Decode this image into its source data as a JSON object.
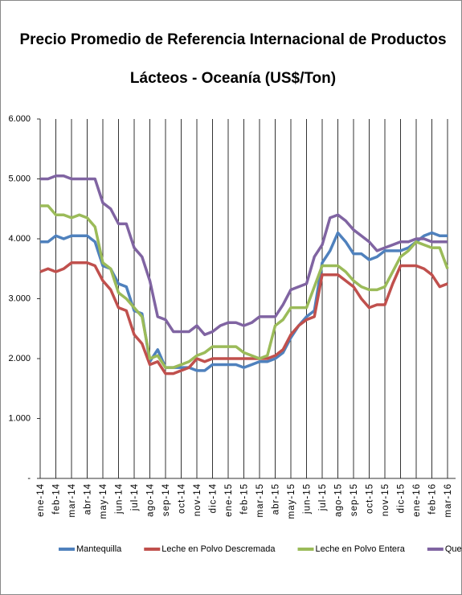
{
  "chart_data": {
    "type": "line",
    "title": [
      "Precio Promedio de Referencia Internacional de Productos",
      "Lácteos - Oceanía (US$/Ton)"
    ],
    "categories": [
      "ene-14",
      null,
      "feb-14",
      null,
      "mar-14",
      null,
      "abr-14",
      null,
      "may-14",
      null,
      "jun-14",
      null,
      "jul-14",
      null,
      "ago-14",
      null,
      "sep-14",
      null,
      "oct-14",
      null,
      "nov-14",
      null,
      "dic-14",
      null,
      "ene-15",
      null,
      "feb-15",
      null,
      "mar-15",
      null,
      "abr-15",
      null,
      "may-15",
      null,
      "jun-15",
      null,
      "jul-15",
      null,
      "ago-15",
      null,
      "sep-15",
      null,
      "oct-15",
      null,
      "nov-15",
      null,
      "dic-15",
      null,
      "ene-16",
      null,
      "feb-16",
      null,
      "mar-16"
    ],
    "series": [
      {
        "name": "Mantequilla",
        "color": "#4f81bd",
        "values": [
          3950,
          3950,
          4050,
          4000,
          4050,
          4050,
          4050,
          3950,
          3550,
          3500,
          3250,
          3200,
          2800,
          2750,
          1950,
          2150,
          1850,
          1850,
          1850,
          1850,
          1800,
          1800,
          1900,
          1900,
          1900,
          1900,
          1850,
          1900,
          1950,
          1950,
          2000,
          2100,
          2350,
          2550,
          2700,
          2800,
          3600,
          3800,
          4100,
          3950,
          3750,
          3750,
          3650,
          3700,
          3800,
          3800,
          3800,
          3850,
          3950,
          4050,
          4100,
          4050,
          4050
        ]
      },
      {
        "name": "Leche en Polvo Descremada",
        "color": "#c0504d",
        "values": [
          3450,
          3500,
          3450,
          3500,
          3600,
          3600,
          3600,
          3550,
          3300,
          3150,
          2850,
          2800,
          2400,
          2250,
          1900,
          1950,
          1750,
          1750,
          1800,
          1850,
          2000,
          1950,
          2000,
          2000,
          2000,
          2000,
          2000,
          2000,
          2000,
          2000,
          2050,
          2150,
          2400,
          2550,
          2650,
          2700,
          3400,
          3400,
          3400,
          3300,
          3200,
          3000,
          2850,
          2900,
          2900,
          3250,
          3550,
          3550,
          3550,
          3500,
          3400,
          3200,
          3250
        ]
      },
      {
        "name": "Leche en Polvo Entera",
        "color": "#9bbb59",
        "values": [
          4550,
          4550,
          4400,
          4400,
          4350,
          4400,
          4350,
          4200,
          3600,
          3500,
          3100,
          3000,
          2850,
          2700,
          2000,
          2050,
          1850,
          1850,
          1900,
          1950,
          2050,
          2100,
          2200,
          2200,
          2200,
          2200,
          2100,
          2050,
          2000,
          2050,
          2550,
          2650,
          2850,
          2850,
          2850,
          3200,
          3550,
          3550,
          3550,
          3450,
          3300,
          3200,
          3150,
          3150,
          3200,
          3450,
          3700,
          3800,
          3950,
          3900,
          3850,
          3850,
          3500
        ]
      },
      {
        "name": "Queso Cheddar",
        "color": "#8064a2",
        "values": [
          5000,
          5000,
          5050,
          5050,
          5000,
          5000,
          5000,
          5000,
          4600,
          4500,
          4250,
          4250,
          3850,
          3700,
          3300,
          2700,
          2650,
          2450,
          2450,
          2450,
          2550,
          2400,
          2450,
          2550,
          2600,
          2600,
          2550,
          2600,
          2700,
          2700,
          2700,
          2900,
          3150,
          3200,
          3250,
          3700,
          3900,
          4350,
          4400,
          4300,
          4150,
          4050,
          3950,
          3800,
          3850,
          3900,
          3950,
          3950,
          4000,
          4000,
          3950,
          3950,
          3950
        ]
      }
    ],
    "ylim": [
      0,
      6000
    ],
    "yticks": [
      {
        "value": 0,
        "label": "-"
      },
      {
        "value": 1000,
        "label": "1.000"
      },
      {
        "value": 2000,
        "label": "2.000"
      },
      {
        "value": 3000,
        "label": "3.000"
      },
      {
        "value": 4000,
        "label": "4.000"
      },
      {
        "value": 5000,
        "label": "5.000"
      },
      {
        "value": 6000,
        "label": "6.000"
      }
    ],
    "grid": "x",
    "legend": "bottom"
  }
}
